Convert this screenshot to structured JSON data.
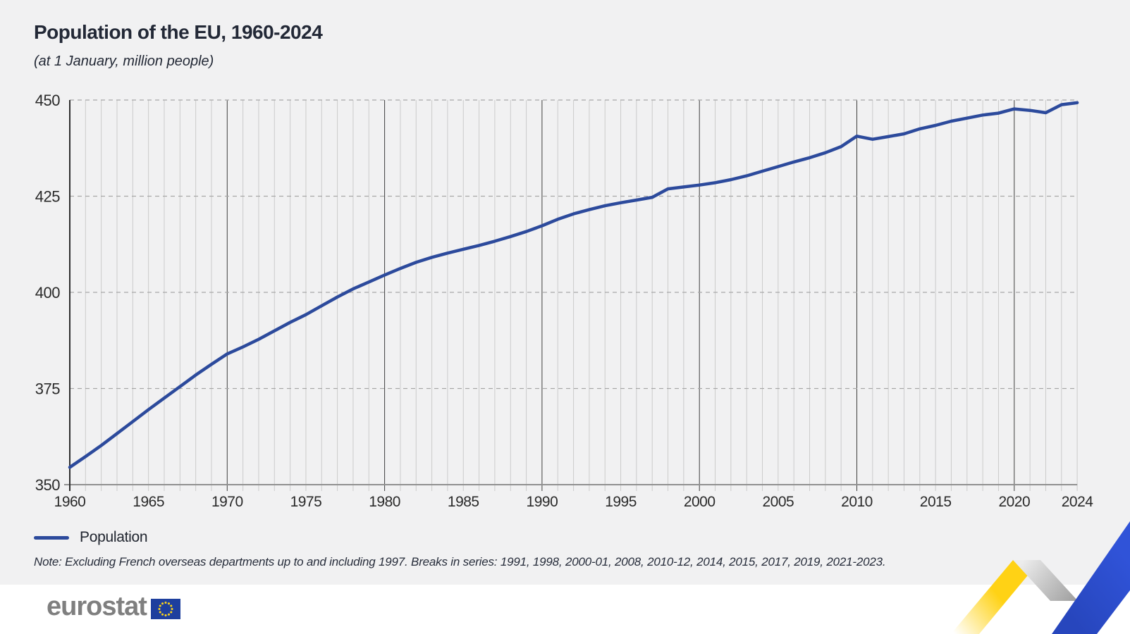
{
  "header": {
    "title": "Population of the EU, 1960-2024",
    "subtitle": "(at 1 January, million people)"
  },
  "legend": {
    "label": "Population"
  },
  "note": "Note: Excluding French overseas departments up to and including 1997. Breaks in series: 1991, 1998, 2000-01, 2008, 2010-12, 2014, 2015, 2017, 2019, 2021-2023.",
  "footer": {
    "logo_text": "eurostat"
  },
  "colors": {
    "line": "#2c4a9c",
    "background": "#f1f1f2",
    "footer_background": "#ffffff",
    "minor_gridline": "#cbcbcb",
    "major_gridline": "#3e3e3e",
    "dashed_gridline": "#a8a8a8",
    "baseline": "#909090",
    "axis": "#2f2f2f",
    "tick_label": "#2a2a2a",
    "ribbon_yellow": "#ffd215",
    "ribbon_gray": "#bfbfbf",
    "ribbon_blue": "#2d4fcd",
    "flag_blue": "#1e3f9e",
    "flag_star": "#ffd617"
  },
  "chart_data": {
    "type": "line",
    "title": "Population of the EU, 1960-2024",
    "subtitle": "(at 1 January, million people)",
    "xlabel": "",
    "ylabel": "million people",
    "ylim": [
      350,
      450
    ],
    "yticks": [
      350,
      375,
      400,
      425,
      450
    ],
    "xticks": [
      1960,
      1965,
      1970,
      1975,
      1980,
      1985,
      1990,
      1995,
      2000,
      2005,
      2010,
      2015,
      2020,
      2024
    ],
    "major_gridline_years": [
      1970,
      1980,
      1990,
      2000,
      2010,
      2020
    ],
    "grid": "vertical solid yearly; horizontal dashed at yticks",
    "legend_position": "bottom-left",
    "x_start": 1960,
    "x_end": 2024,
    "series": [
      {
        "name": "Population",
        "values": [
          354.5,
          357.3,
          360.2,
          363.3,
          366.4,
          369.5,
          372.5,
          375.5,
          378.5,
          381.3,
          384.0,
          385.8,
          387.8,
          390.0,
          392.2,
          394.2,
          396.5,
          398.8,
          400.9,
          402.7,
          404.5,
          406.2,
          407.8,
          409.1,
          410.2,
          411.2,
          412.2,
          413.3,
          414.5,
          415.8,
          417.3,
          419.0,
          420.4,
          421.5,
          422.5,
          423.3,
          424.0,
          424.7,
          426.9,
          427.4,
          427.9,
          428.5,
          429.3,
          430.3,
          431.5,
          432.7,
          433.9,
          435.0,
          436.3,
          437.9,
          440.6,
          439.8,
          440.5,
          441.2,
          442.5,
          443.4,
          444.5,
          445.3,
          446.1,
          446.6,
          447.7,
          447.3,
          446.7,
          448.8,
          449.3
        ]
      }
    ]
  }
}
